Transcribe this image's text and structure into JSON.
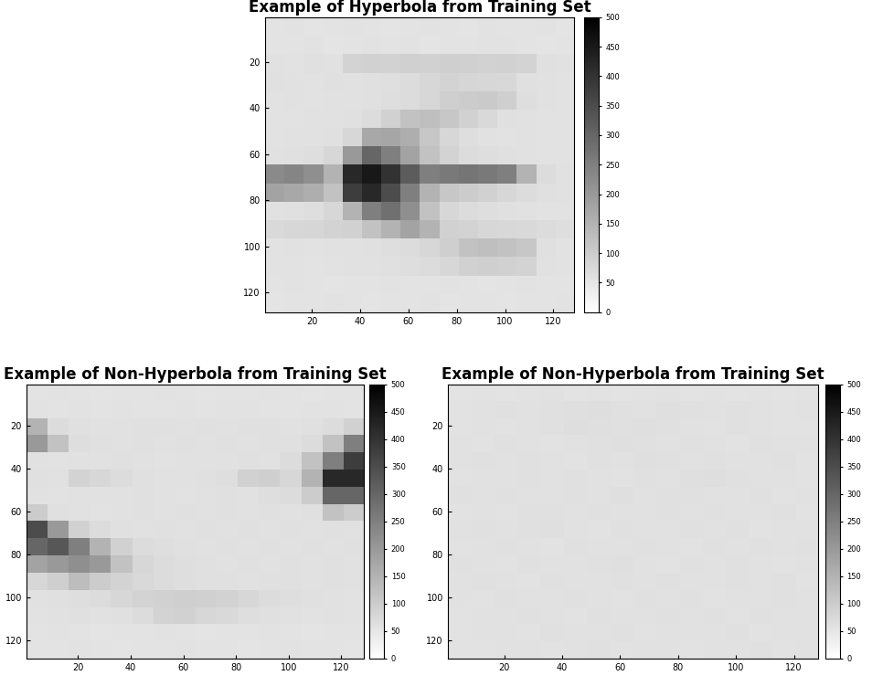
{
  "chart_data": [
    {
      "type": "heatmap",
      "title": "Example of Hyperbola from Training Set",
      "xlim": [
        0.5,
        128.5
      ],
      "ylim": [
        128.5,
        0.5
      ],
      "xticks": [
        20,
        40,
        60,
        80,
        100,
        120
      ],
      "yticks": [
        20,
        40,
        60,
        80,
        100,
        120
      ],
      "colorbar": {
        "range": [
          0,
          500
        ],
        "ticks": [
          0,
          50,
          100,
          150,
          200,
          250,
          300,
          350,
          400,
          450,
          500
        ]
      },
      "cells": [
        [
          55,
          58,
          54,
          56,
          57,
          55,
          53,
          56,
          58,
          55,
          54,
          57,
          56,
          55,
          58,
          54
        ],
        [
          56,
          55,
          57,
          54,
          56,
          58,
          55,
          57,
          54,
          56,
          55,
          58,
          57,
          55,
          54,
          56
        ],
        [
          60,
          58,
          62,
          60,
          85,
          90,
          88,
          92,
          90,
          95,
          92,
          88,
          90,
          85,
          62,
          60
        ],
        [
          62,
          60,
          58,
          61,
          60,
          62,
          64,
          70,
          80,
          85,
          82,
          80,
          78,
          62,
          60,
          58
        ],
        [
          58,
          60,
          57,
          59,
          60,
          62,
          65,
          70,
          80,
          95,
          100,
          105,
          95,
          65,
          60,
          58
        ],
        [
          57,
          58,
          60,
          59,
          62,
          70,
          90,
          120,
          125,
          110,
          90,
          75,
          62,
          60,
          58,
          57
        ],
        [
          58,
          60,
          59,
          62,
          80,
          170,
          175,
          160,
          110,
          80,
          65,
          60,
          58,
          60,
          57,
          58
        ],
        [
          60,
          62,
          65,
          80,
          200,
          300,
          250,
          180,
          120,
          85,
          70,
          65,
          62,
          60,
          58,
          57
        ],
        [
          230,
          240,
          220,
          150,
          420,
          450,
          400,
          320,
          250,
          260,
          270,
          260,
          250,
          150,
          70,
          60
        ],
        [
          180,
          170,
          160,
          120,
          380,
          420,
          350,
          250,
          150,
          110,
          100,
          90,
          80,
          70,
          62,
          60
        ],
        [
          60,
          62,
          65,
          80,
          150,
          250,
          280,
          220,
          120,
          80,
          70,
          65,
          62,
          60,
          58,
          57
        ],
        [
          75,
          80,
          82,
          85,
          90,
          120,
          150,
          180,
          150,
          90,
          85,
          80,
          78,
          75,
          70,
          65
        ],
        [
          58,
          60,
          57,
          59,
          60,
          62,
          65,
          70,
          80,
          95,
          120,
          125,
          120,
          110,
          62,
          58
        ],
        [
          57,
          58,
          56,
          58,
          59,
          60,
          62,
          65,
          70,
          80,
          90,
          95,
          90,
          85,
          60,
          57
        ],
        [
          55,
          57,
          56,
          54,
          56,
          55,
          58,
          56,
          55,
          57,
          56,
          54,
          55,
          57,
          56,
          55
        ],
        [
          54,
          56,
          55,
          57,
          55,
          54,
          56,
          55,
          57,
          54,
          56,
          55,
          54,
          56,
          55,
          57
        ]
      ]
    },
    {
      "type": "heatmap",
      "title": "Example of Non-Hyperbola from Training Set",
      "xlim": [
        0.5,
        128.5
      ],
      "ylim": [
        128.5,
        0.5
      ],
      "xticks": [
        20,
        40,
        60,
        80,
        100,
        120
      ],
      "yticks": [
        20,
        40,
        60,
        80,
        100,
        120
      ],
      "colorbar": {
        "range": [
          0,
          500
        ],
        "ticks": [
          0,
          50,
          100,
          150,
          200,
          250,
          300,
          350,
          400,
          450,
          500
        ]
      },
      "cells": [
        [
          55,
          57,
          56,
          54,
          56,
          55,
          57,
          55,
          54,
          56,
          55,
          57,
          56,
          54,
          55,
          56
        ],
        [
          58,
          56,
          57,
          55,
          58,
          56,
          55,
          57,
          56,
          58,
          57,
          55,
          56,
          57,
          58,
          56
        ],
        [
          150,
          70,
          62,
          60,
          60,
          62,
          61,
          60,
          62,
          60,
          61,
          62,
          60,
          61,
          70,
          90
        ],
        [
          200,
          120,
          65,
          62,
          60,
          61,
          60,
          62,
          60,
          61,
          60,
          62,
          61,
          70,
          120,
          250
        ],
        [
          60,
          58,
          60,
          59,
          61,
          60,
          58,
          60,
          59,
          60,
          62,
          60,
          70,
          120,
          250,
          380
        ],
        [
          62,
          60,
          85,
          80,
          70,
          62,
          60,
          60,
          62,
          65,
          90,
          95,
          80,
          150,
          420,
          420
        ],
        [
          60,
          58,
          60,
          59,
          60,
          62,
          60,
          58,
          60,
          62,
          60,
          65,
          70,
          100,
          300,
          300
        ],
        [
          100,
          62,
          60,
          58,
          60,
          61,
          60,
          62,
          60,
          61,
          60,
          62,
          60,
          61,
          120,
          100
        ],
        [
          350,
          200,
          90,
          70,
          62,
          60,
          61,
          60,
          62,
          60,
          61,
          60,
          62,
          60,
          61,
          60
        ],
        [
          300,
          330,
          250,
          150,
          90,
          70,
          65,
          62,
          60,
          61,
          60,
          62,
          60,
          61,
          60,
          62
        ],
        [
          180,
          200,
          220,
          200,
          120,
          80,
          70,
          65,
          62,
          60,
          61,
          60,
          62,
          60,
          61,
          60
        ],
        [
          80,
          95,
          130,
          100,
          85,
          75,
          70,
          65,
          62,
          61,
          60,
          62,
          61,
          60,
          62,
          60
        ],
        [
          60,
          62,
          65,
          70,
          80,
          85,
          90,
          95,
          92,
          88,
          80,
          70,
          65,
          62,
          60,
          58
        ],
        [
          58,
          60,
          62,
          60,
          62,
          70,
          85,
          90,
          80,
          75,
          65,
          62,
          60,
          58,
          60,
          57
        ],
        [
          55,
          57,
          56,
          54,
          56,
          55,
          57,
          55,
          54,
          56,
          55,
          57,
          56,
          54,
          55,
          56
        ],
        [
          56,
          55,
          57,
          56,
          54,
          56,
          55,
          57,
          56,
          55,
          54,
          56,
          57,
          55,
          56,
          54
        ]
      ]
    },
    {
      "type": "heatmap",
      "title": "Example of Non-Hyperbola from Training Set",
      "xlim": [
        0.5,
        128.5
      ],
      "ylim": [
        128.5,
        0.5
      ],
      "xticks": [
        20,
        40,
        60,
        80,
        100,
        120
      ],
      "yticks": [
        20,
        40,
        60,
        80,
        100,
        120
      ],
      "colorbar": {
        "range": [
          0,
          500
        ],
        "ticks": [
          0,
          50,
          100,
          150,
          200,
          250,
          300,
          350,
          400,
          450,
          500
        ]
      },
      "cells": [
        [
          56,
          58,
          55,
          57,
          60,
          56,
          58,
          55,
          57,
          59,
          56,
          58,
          55,
          57,
          56,
          58
        ],
        [
          58,
          60,
          62,
          59,
          61,
          64,
          66,
          62,
          60,
          63,
          61,
          59,
          62,
          60,
          58,
          60
        ],
        [
          57,
          59,
          58,
          60,
          62,
          65,
          63,
          61,
          64,
          62,
          60,
          58,
          61,
          59,
          57,
          58
        ],
        [
          60,
          58,
          61,
          59,
          57,
          60,
          62,
          64,
          61,
          59,
          62,
          60,
          58,
          61,
          60,
          59
        ],
        [
          59,
          61,
          60,
          62,
          60,
          58,
          61,
          60,
          63,
          61,
          60,
          62,
          60,
          59,
          61,
          58
        ],
        [
          58,
          60,
          59,
          61,
          60,
          62,
          60,
          58,
          61,
          60,
          64,
          66,
          62,
          60,
          59,
          57
        ],
        [
          61,
          59,
          62,
          60,
          59,
          61,
          60,
          63,
          60,
          62,
          61,
          59,
          60,
          62,
          58,
          60
        ],
        [
          57,
          60,
          58,
          62,
          61,
          59,
          62,
          60,
          59,
          61,
          60,
          62,
          59,
          60,
          61,
          58
        ],
        [
          60,
          62,
          59,
          61,
          63,
          60,
          58,
          61,
          60,
          59,
          62,
          60,
          61,
          58,
          60,
          59
        ],
        [
          58,
          59,
          61,
          60,
          58,
          62,
          60,
          59,
          62,
          60,
          58,
          61,
          60,
          62,
          59,
          61
        ],
        [
          61,
          60,
          58,
          62,
          60,
          59,
          61,
          63,
          60,
          58,
          61,
          60,
          62,
          60,
          58,
          60
        ],
        [
          59,
          61,
          60,
          58,
          62,
          60,
          59,
          61,
          60,
          62,
          60,
          59,
          61,
          60,
          62,
          58
        ],
        [
          60,
          58,
          62,
          60,
          59,
          61,
          60,
          58,
          62,
          60,
          61,
          58,
          60,
          59,
          61,
          60
        ],
        [
          58,
          60,
          59,
          61,
          60,
          58,
          62,
          60,
          59,
          61,
          60,
          62,
          58,
          61,
          60,
          59
        ],
        [
          57,
          59,
          60,
          58,
          61,
          60,
          59,
          61,
          58,
          60,
          59,
          60,
          61,
          58,
          59,
          60
        ],
        [
          58,
          57,
          59,
          60,
          58,
          59,
          61,
          58,
          60,
          59,
          58,
          60,
          59,
          61,
          58,
          59
        ]
      ]
    }
  ]
}
